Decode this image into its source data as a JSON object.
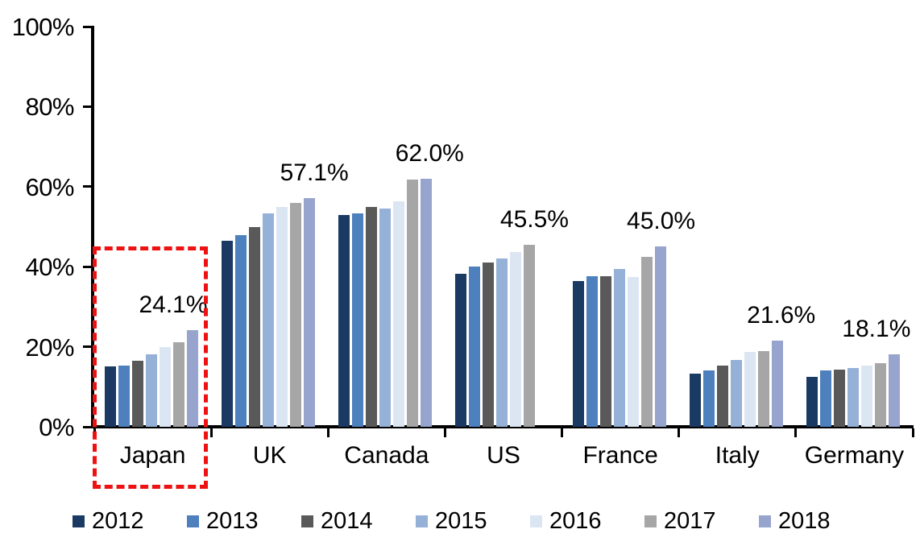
{
  "chart_data": {
    "type": "bar",
    "unit": "percent",
    "categories": [
      "Japan",
      "UK",
      "Canada",
      "US",
      "France",
      "Italy",
      "Germany"
    ],
    "series": [
      {
        "name": "2012",
        "color": "#1A3A63",
        "values": [
          15.1,
          46.5,
          53.0,
          38.2,
          36.4,
          13.3,
          12.5
        ]
      },
      {
        "name": "2013",
        "color": "#4E80BD",
        "values": [
          15.3,
          47.9,
          53.4,
          40.0,
          37.7,
          14.1,
          14.0
        ]
      },
      {
        "name": "2014",
        "color": "#595959",
        "values": [
          16.4,
          50.0,
          54.9,
          41.0,
          37.6,
          15.2,
          14.2
        ]
      },
      {
        "name": "2015",
        "color": "#95B1D7",
        "values": [
          18.2,
          53.3,
          54.6,
          42.0,
          39.4,
          16.8,
          14.6
        ]
      },
      {
        "name": "2016",
        "color": "#DCE6F2",
        "values": [
          20.0,
          54.9,
          56.3,
          43.6,
          37.5,
          18.8,
          15.2
        ]
      },
      {
        "name": "2017",
        "color": "#A6A6A6",
        "values": [
          21.1,
          56.0,
          61.7,
          45.5,
          42.4,
          19.0,
          15.8
        ]
      },
      {
        "name": "2018",
        "color": "#96A4CE",
        "values": [
          24.1,
          57.1,
          62.0,
          null,
          45.0,
          21.6,
          18.1
        ]
      }
    ],
    "data_labels": [
      {
        "category": "Japan",
        "text": "24.1%",
        "dx": -24
      },
      {
        "category": "UK",
        "text": "57.1%",
        "dx": 6
      },
      {
        "category": "Canada",
        "text": "62.0%",
        "dx": 4
      },
      {
        "category": "US",
        "text": "45.5%",
        "dx": 6
      },
      {
        "category": "France",
        "text": "45.0%",
        "dx": 1
      },
      {
        "category": "Italy",
        "text": "21.6%",
        "dx": 5
      },
      {
        "category": "Germany",
        "text": "18.1%",
        "dx": -22
      }
    ],
    "y_axis": {
      "min": 0,
      "max": 100,
      "tick_step": 20,
      "tick_labels": [
        "0%",
        "20%",
        "40%",
        "60%",
        "80%",
        "100%"
      ]
    },
    "legend": {
      "position": "bottom",
      "entries": [
        "2012",
        "2013",
        "2014",
        "2015",
        "2016",
        "2017",
        "2018"
      ]
    },
    "annotations": [
      {
        "type": "highlight-box",
        "target": "Japan",
        "color": "#EE1111",
        "style": "dashed"
      }
    ],
    "grid": false,
    "background": "#FFFFFF",
    "axis_color": "#000000"
  }
}
